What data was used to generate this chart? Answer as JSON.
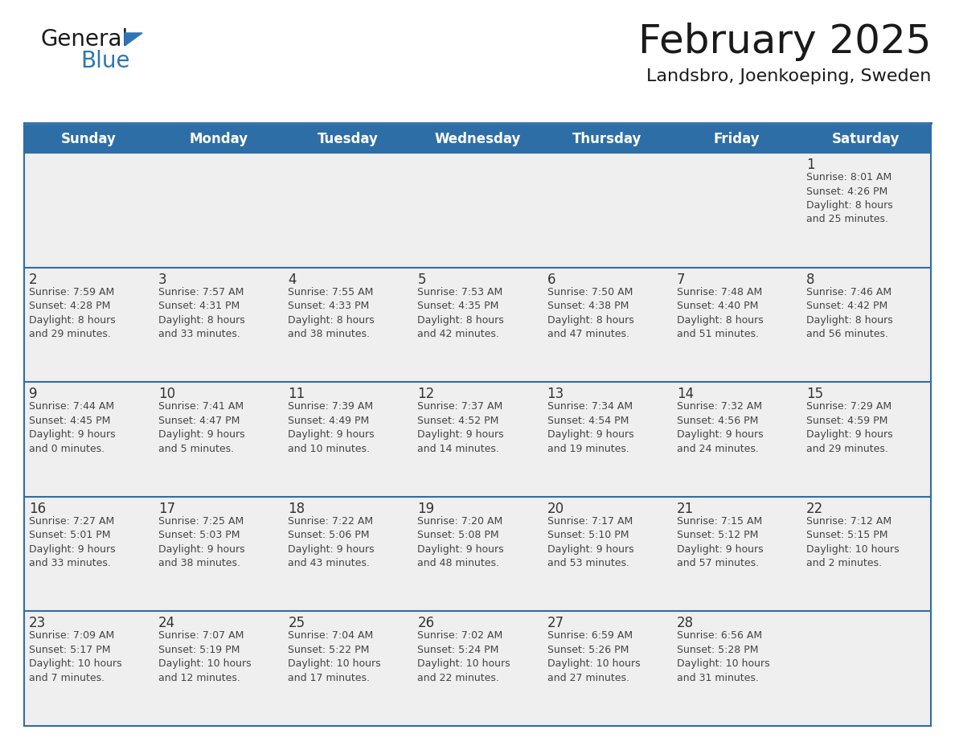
{
  "title": "February 2025",
  "subtitle": "Landsbro, Joenkoeping, Sweden",
  "header_bg": "#2E6EA6",
  "header_text_color": "#FFFFFF",
  "cell_bg": "#EFEFEF",
  "day_number_color": "#333333",
  "text_color": "#444444",
  "border_color": "#2E6EA6",
  "days_of_week": [
    "Sunday",
    "Monday",
    "Tuesday",
    "Wednesday",
    "Thursday",
    "Friday",
    "Saturday"
  ],
  "weeks": [
    [
      {
        "day": null,
        "info": null
      },
      {
        "day": null,
        "info": null
      },
      {
        "day": null,
        "info": null
      },
      {
        "day": null,
        "info": null
      },
      {
        "day": null,
        "info": null
      },
      {
        "day": null,
        "info": null
      },
      {
        "day": 1,
        "info": "Sunrise: 8:01 AM\nSunset: 4:26 PM\nDaylight: 8 hours\nand 25 minutes."
      }
    ],
    [
      {
        "day": 2,
        "info": "Sunrise: 7:59 AM\nSunset: 4:28 PM\nDaylight: 8 hours\nand 29 minutes."
      },
      {
        "day": 3,
        "info": "Sunrise: 7:57 AM\nSunset: 4:31 PM\nDaylight: 8 hours\nand 33 minutes."
      },
      {
        "day": 4,
        "info": "Sunrise: 7:55 AM\nSunset: 4:33 PM\nDaylight: 8 hours\nand 38 minutes."
      },
      {
        "day": 5,
        "info": "Sunrise: 7:53 AM\nSunset: 4:35 PM\nDaylight: 8 hours\nand 42 minutes."
      },
      {
        "day": 6,
        "info": "Sunrise: 7:50 AM\nSunset: 4:38 PM\nDaylight: 8 hours\nand 47 minutes."
      },
      {
        "day": 7,
        "info": "Sunrise: 7:48 AM\nSunset: 4:40 PM\nDaylight: 8 hours\nand 51 minutes."
      },
      {
        "day": 8,
        "info": "Sunrise: 7:46 AM\nSunset: 4:42 PM\nDaylight: 8 hours\nand 56 minutes."
      }
    ],
    [
      {
        "day": 9,
        "info": "Sunrise: 7:44 AM\nSunset: 4:45 PM\nDaylight: 9 hours\nand 0 minutes."
      },
      {
        "day": 10,
        "info": "Sunrise: 7:41 AM\nSunset: 4:47 PM\nDaylight: 9 hours\nand 5 minutes."
      },
      {
        "day": 11,
        "info": "Sunrise: 7:39 AM\nSunset: 4:49 PM\nDaylight: 9 hours\nand 10 minutes."
      },
      {
        "day": 12,
        "info": "Sunrise: 7:37 AM\nSunset: 4:52 PM\nDaylight: 9 hours\nand 14 minutes."
      },
      {
        "day": 13,
        "info": "Sunrise: 7:34 AM\nSunset: 4:54 PM\nDaylight: 9 hours\nand 19 minutes."
      },
      {
        "day": 14,
        "info": "Sunrise: 7:32 AM\nSunset: 4:56 PM\nDaylight: 9 hours\nand 24 minutes."
      },
      {
        "day": 15,
        "info": "Sunrise: 7:29 AM\nSunset: 4:59 PM\nDaylight: 9 hours\nand 29 minutes."
      }
    ],
    [
      {
        "day": 16,
        "info": "Sunrise: 7:27 AM\nSunset: 5:01 PM\nDaylight: 9 hours\nand 33 minutes."
      },
      {
        "day": 17,
        "info": "Sunrise: 7:25 AM\nSunset: 5:03 PM\nDaylight: 9 hours\nand 38 minutes."
      },
      {
        "day": 18,
        "info": "Sunrise: 7:22 AM\nSunset: 5:06 PM\nDaylight: 9 hours\nand 43 minutes."
      },
      {
        "day": 19,
        "info": "Sunrise: 7:20 AM\nSunset: 5:08 PM\nDaylight: 9 hours\nand 48 minutes."
      },
      {
        "day": 20,
        "info": "Sunrise: 7:17 AM\nSunset: 5:10 PM\nDaylight: 9 hours\nand 53 minutes."
      },
      {
        "day": 21,
        "info": "Sunrise: 7:15 AM\nSunset: 5:12 PM\nDaylight: 9 hours\nand 57 minutes."
      },
      {
        "day": 22,
        "info": "Sunrise: 7:12 AM\nSunset: 5:15 PM\nDaylight: 10 hours\nand 2 minutes."
      }
    ],
    [
      {
        "day": 23,
        "info": "Sunrise: 7:09 AM\nSunset: 5:17 PM\nDaylight: 10 hours\nand 7 minutes."
      },
      {
        "day": 24,
        "info": "Sunrise: 7:07 AM\nSunset: 5:19 PM\nDaylight: 10 hours\nand 12 minutes."
      },
      {
        "day": 25,
        "info": "Sunrise: 7:04 AM\nSunset: 5:22 PM\nDaylight: 10 hours\nand 17 minutes."
      },
      {
        "day": 26,
        "info": "Sunrise: 7:02 AM\nSunset: 5:24 PM\nDaylight: 10 hours\nand 22 minutes."
      },
      {
        "day": 27,
        "info": "Sunrise: 6:59 AM\nSunset: 5:26 PM\nDaylight: 10 hours\nand 27 minutes."
      },
      {
        "day": 28,
        "info": "Sunrise: 6:56 AM\nSunset: 5:28 PM\nDaylight: 10 hours\nand 31 minutes."
      },
      {
        "day": null,
        "info": null
      }
    ]
  ],
  "logo_general_color": "#1a1a1a",
  "logo_blue_color": "#2E75B6",
  "logo_triangle_color": "#2E75B6",
  "title_fontsize": 36,
  "subtitle_fontsize": 16,
  "header_fontsize": 12,
  "day_num_fontsize": 12,
  "info_fontsize": 9
}
